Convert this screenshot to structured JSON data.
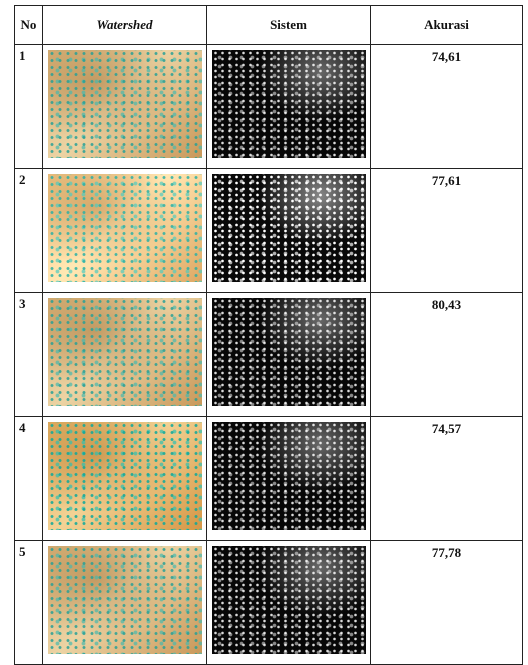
{
  "table": {
    "header": [
      "No",
      "Watershed",
      "Sistem",
      "Akurasi"
    ],
    "rows": [
      [
        "1",
        "74,61"
      ],
      [
        "2",
        "77,61"
      ],
      [
        "3",
        "80,43"
      ],
      [
        "4",
        "74,57"
      ],
      [
        "5",
        "77,78"
      ]
    ]
  }
}
